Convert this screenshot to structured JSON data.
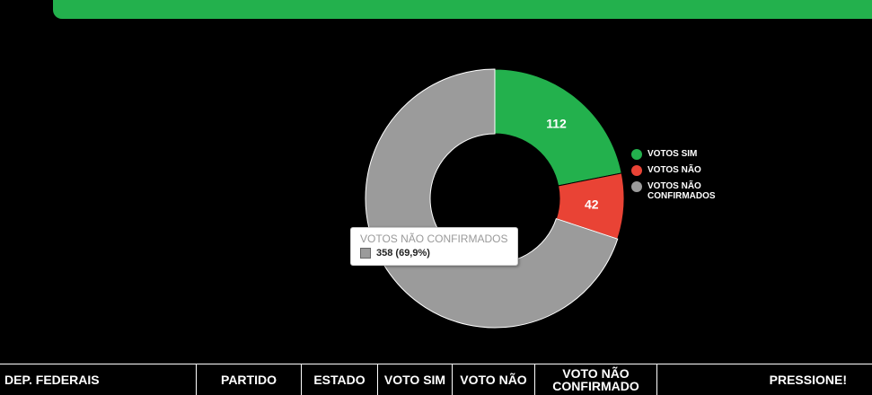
{
  "colors": {
    "top_bar": "#23b14d",
    "sim": "#23b14d",
    "nao": "#e94335",
    "nao_confirmados": "#9b9b9b"
  },
  "chart_data": {
    "type": "pie",
    "variant": "donut",
    "categories": [
      "VOTOS SIM",
      "VOTOS NÃO",
      "VOTOS NÃO CONFIRMADOS"
    ],
    "values": [
      112,
      42,
      358
    ],
    "data_labels": [
      "112",
      "42",
      ""
    ],
    "legend_placement": "right"
  },
  "legend": {
    "items": [
      {
        "label": "VOTOS SIM",
        "color": "#23b14d"
      },
      {
        "label": "VOTOS NÃO",
        "color": "#e94335"
      },
      {
        "label": "VOTOS NÃO CONFIRMADOS",
        "color": "#9b9b9b"
      }
    ]
  },
  "tooltip": {
    "title": "VOTOS NÃO CONFIRMADOS",
    "value": "358 (69,9%)"
  },
  "table": {
    "headers": [
      "DEP. FEDERAIS",
      "PARTIDO",
      "ESTADO",
      "VOTO SIM",
      "VOTO NÃO",
      "VOTO NÃO CONFIRMADO",
      "PRESSIONE!"
    ]
  }
}
